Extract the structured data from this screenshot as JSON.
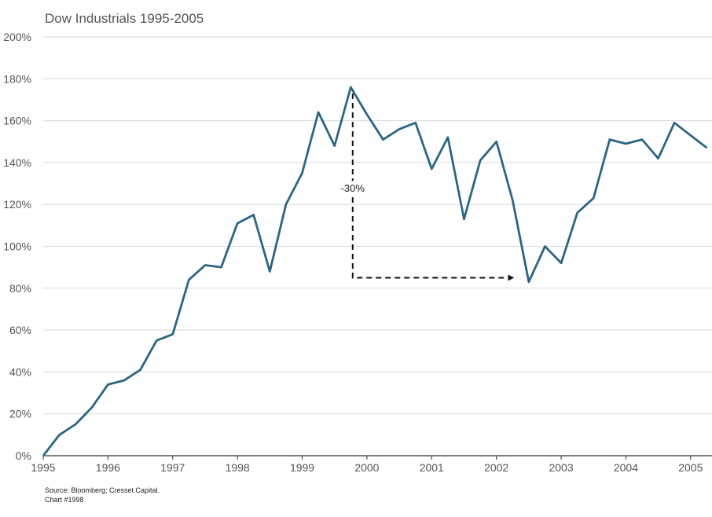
{
  "chart_data": {
    "type": "line",
    "title": "Dow Industrials 1995-2005",
    "xlabel": "",
    "ylabel": "",
    "xlim": [
      1995,
      2005.33
    ],
    "ylim": [
      0,
      200
    ],
    "y_ticks": [
      0,
      20,
      40,
      60,
      80,
      100,
      120,
      140,
      160,
      180,
      200
    ],
    "y_tick_labels": [
      "0%",
      "20%",
      "40%",
      "60%",
      "80%",
      "100%",
      "120%",
      "140%",
      "160%",
      "180%",
      "200%"
    ],
    "x_ticks": [
      1995,
      1996,
      1997,
      1998,
      1999,
      2000,
      2001,
      2002,
      2003,
      2004,
      2005
    ],
    "x_tick_labels": [
      "1995",
      "1996",
      "1997",
      "1998",
      "1999",
      "2000",
      "2001",
      "2002",
      "2003",
      "2004",
      "2005"
    ],
    "grid": "horizontal",
    "line_color": "#2b6683",
    "series": [
      {
        "x": [
          1995.0,
          1995.25,
          1995.5,
          1995.75,
          1996.0,
          1996.25,
          1996.5,
          1996.75,
          1997.0,
          1997.25,
          1997.5,
          1997.75,
          1998.0,
          1998.25,
          1998.5,
          1998.75,
          1999.0,
          1999.25,
          1999.5,
          1999.75,
          2000.0,
          2000.25,
          2000.5,
          2000.75,
          2001.0,
          2001.25,
          2001.5,
          2001.75,
          2002.0,
          2002.25,
          2002.5,
          2002.75,
          2003.0,
          2003.25,
          2003.5,
          2003.75,
          2004.0,
          2004.25,
          2004.5,
          2004.75,
          2005.0,
          2005.25
        ],
        "values": [
          0,
          10,
          15,
          23,
          34,
          36,
          41,
          55,
          58,
          84,
          91,
          90,
          111,
          115,
          88,
          120,
          135,
          164,
          148,
          176,
          163,
          151,
          156,
          159,
          137,
          152,
          113,
          141,
          150,
          122,
          83,
          100,
          92,
          116,
          123,
          151,
          149,
          151,
          142,
          159,
          153,
          147
        ]
      }
    ],
    "annotations": [
      {
        "type": "drawdown-arrow",
        "label": "-30%",
        "from": {
          "x": 1999.78,
          "y": 173
        },
        "corner": {
          "x": 1999.78,
          "y": 85
        },
        "to": {
          "x": 2002.25,
          "y": 85
        }
      }
    ]
  },
  "footer": {
    "source": "Source: Bloomberg; Cresset Capital.",
    "chart_id": "Chart #1998"
  }
}
